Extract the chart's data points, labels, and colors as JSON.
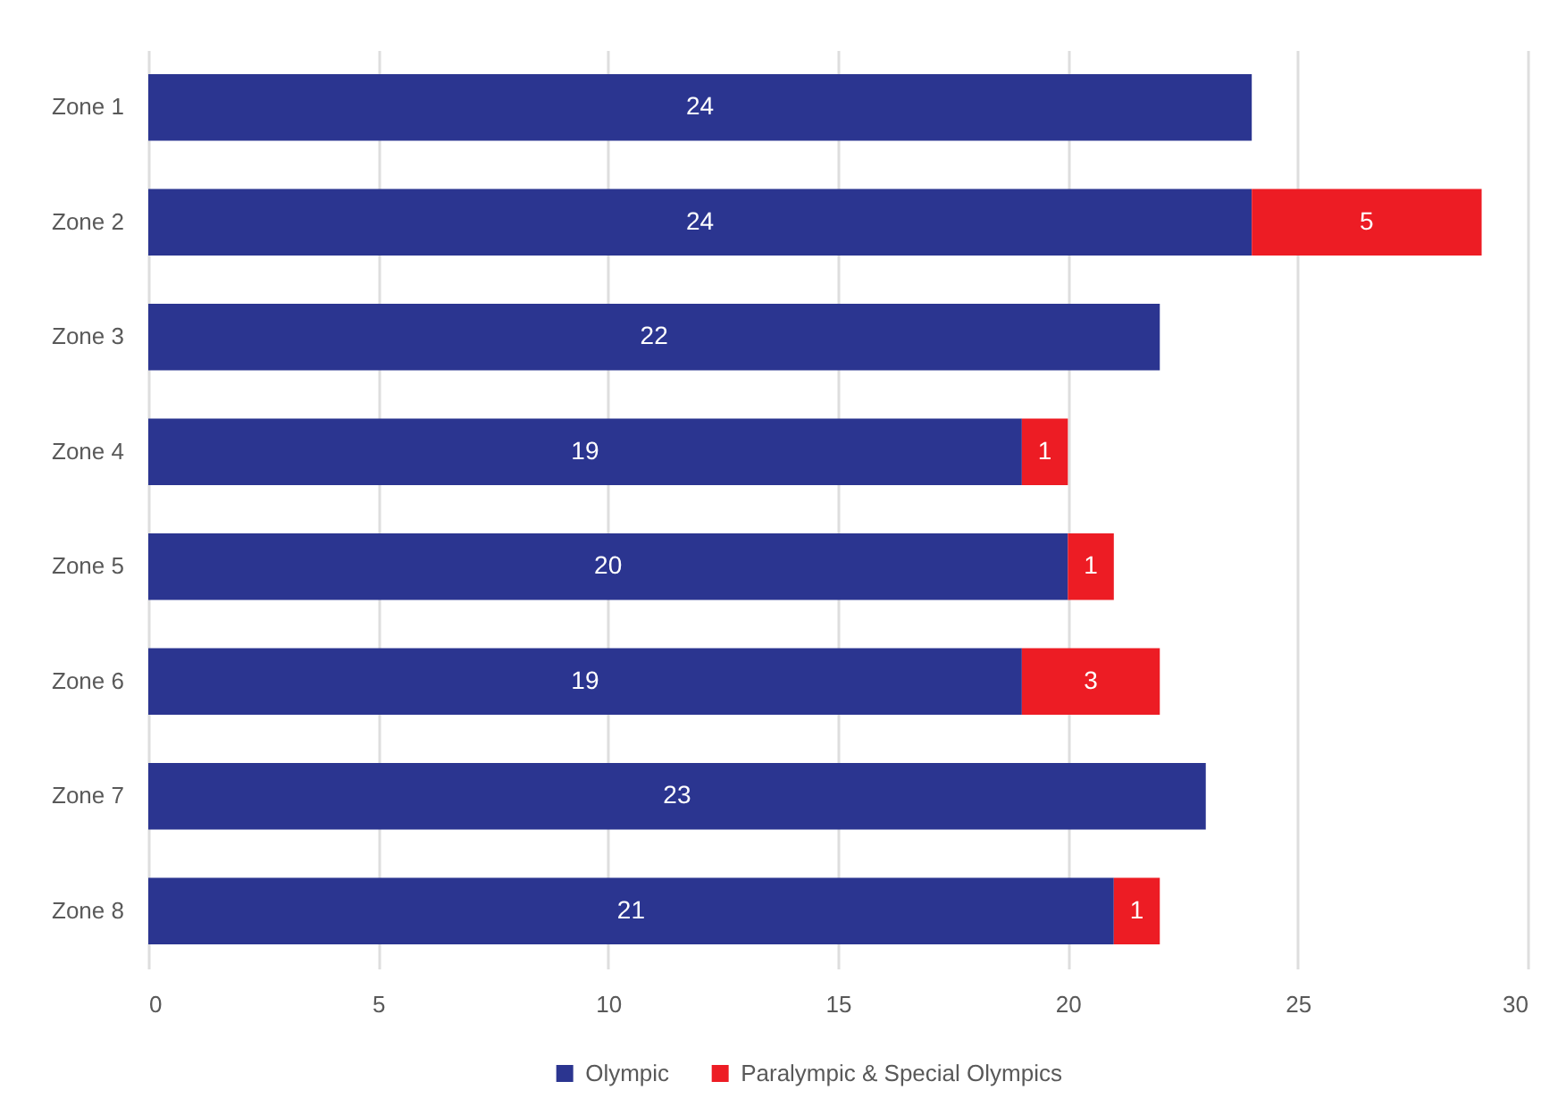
{
  "chart_data": {
    "type": "bar",
    "orientation": "horizontal",
    "stacked": true,
    "categories": [
      "Zone 1",
      "Zone 2",
      "Zone 3",
      "Zone 4",
      "Zone 5",
      "Zone 6",
      "Zone 7",
      "Zone 8"
    ],
    "series": [
      {
        "name": "Olympic",
        "color": "#2b3590",
        "values": [
          24,
          24,
          22,
          19,
          20,
          19,
          23,
          21
        ]
      },
      {
        "name": "Paralympic & Special Olympics",
        "color": "#ed1c24",
        "values": [
          null,
          5,
          null,
          1,
          1,
          3,
          null,
          1
        ]
      }
    ],
    "xlim": [
      0,
      30
    ],
    "xticks": [
      0,
      5,
      10,
      15,
      20,
      25,
      30
    ],
    "grid": "x",
    "legend": "bottom",
    "data_labels": true
  }
}
